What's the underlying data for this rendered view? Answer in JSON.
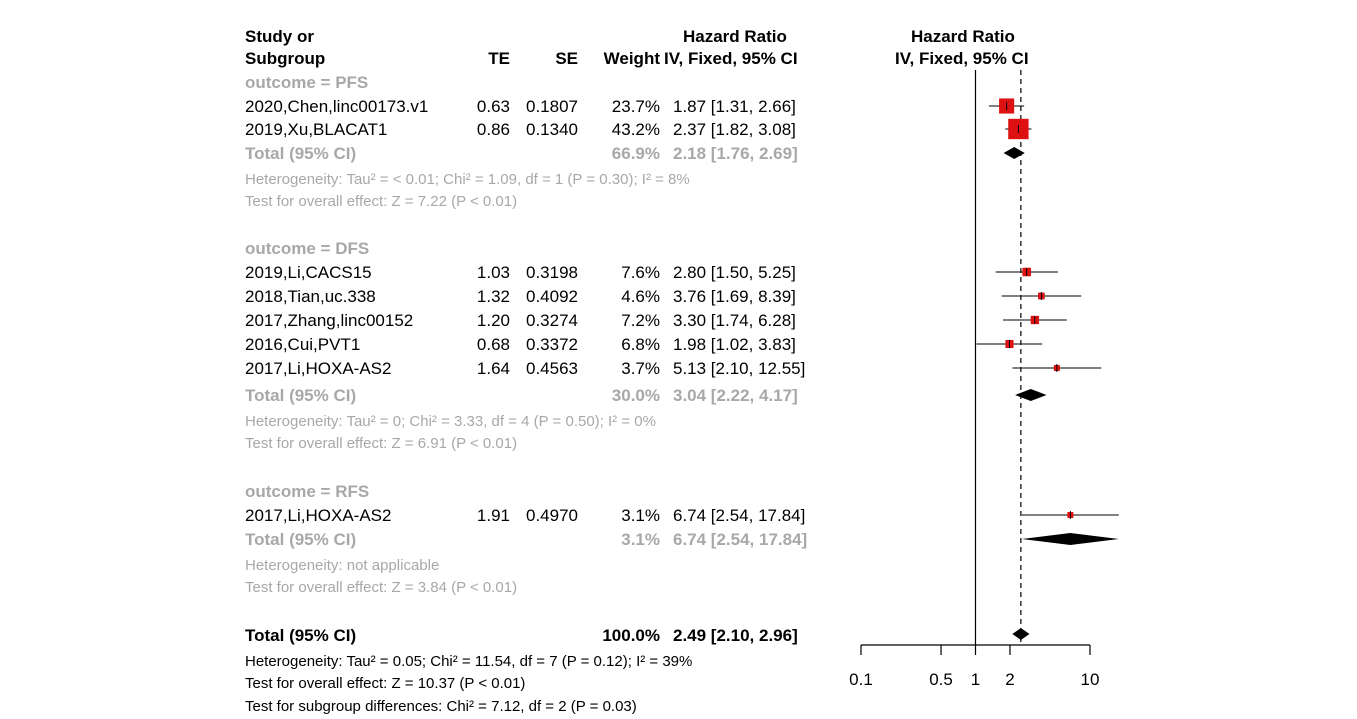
{
  "headers": {
    "study_line1": "Study or",
    "study_line2": "Subgroup",
    "te": "TE",
    "se": "SE",
    "weight": "Weight",
    "hr_line1": "Hazard Ratio",
    "hr_line2": "IV, Fixed, 95% CI",
    "plot_line1": "Hazard Ratio",
    "plot_line2": "IV, Fixed, 95% CI"
  },
  "subgroups": [
    {
      "label": "outcome = PFS",
      "studies": [
        {
          "name": "2020,Chen,linc00173.v1",
          "te": "0.63",
          "se": "0.1807",
          "weight": "23.7%",
          "ci": "1.87 [1.31,  2.66]"
        },
        {
          "name": "2019,Xu,BLACAT1",
          "te": "0.86",
          "se": "0.1340",
          "weight": "43.2%",
          "ci": "2.37 [1.82,  3.08]"
        }
      ],
      "total": {
        "label": "Total (95% CI)",
        "weight": "66.9%",
        "ci": "2.18 [1.76,  2.69]"
      },
      "heterogeneity": "Heterogeneity: Tau² = < 0.01; Chi² = 1.09, df = 1 (P = 0.30); I² = 8%",
      "overall": "Test for overall effect: Z = 7.22 (P < 0.01)"
    },
    {
      "label": "outcome = DFS",
      "studies": [
        {
          "name": "2019,Li,CACS15",
          "te": "1.03",
          "se": "0.3198",
          "weight": "7.6%",
          "ci": "2.80 [1.50,  5.25]"
        },
        {
          "name": "2018,Tian,uc.338",
          "te": "1.32",
          "se": "0.4092",
          "weight": "4.6%",
          "ci": "3.76 [1.69,  8.39]"
        },
        {
          "name": "2017,Zhang,linc00152",
          "te": "1.20",
          "se": "0.3274",
          "weight": "7.2%",
          "ci": "3.30 [1.74,  6.28]"
        },
        {
          "name": "2016,Cui,PVT1",
          "te": "0.68",
          "se": "0.3372",
          "weight": "6.8%",
          "ci": "1.98 [1.02,  3.83]"
        },
        {
          "name": "2017,Li,HOXA-AS2",
          "te": "1.64",
          "se": "0.4563",
          "weight": "3.7%",
          "ci": "5.13 [2.10, 12.55]"
        }
      ],
      "total": {
        "label": "Total (95% CI)",
        "weight": "30.0%",
        "ci": "3.04 [2.22,  4.17]"
      },
      "heterogeneity": "Heterogeneity: Tau² = 0; Chi² = 3.33, df = 4 (P = 0.50); I² = 0%",
      "overall": "Test for overall effect: Z = 6.91 (P < 0.01)"
    },
    {
      "label": "outcome = RFS",
      "studies": [
        {
          "name": "2017,Li,HOXA-AS2",
          "te": "1.91",
          "se": "0.4970",
          "weight": "3.1%",
          "ci": "6.74 [2.54, 17.84]"
        }
      ],
      "total": {
        "label": "Total (95% CI)",
        "weight": "3.1%",
        "ci": "6.74 [2.54, 17.84]"
      },
      "heterogeneity": "Heterogeneity: not applicable",
      "overall": "Test for overall effect: Z = 3.84 (P < 0.01)"
    }
  ],
  "overall_total": {
    "label": "Total (95% CI)",
    "weight": "100.0%",
    "ci": "2.49 [2.10,  2.96]"
  },
  "overall_heterogeneity": "Heterogeneity: Tau² = 0.05; Chi² = 11.54, df = 7 (P = 0.12); I² = 39%",
  "overall_effect": "Test for overall effect: Z = 10.37 (P < 0.01)",
  "subgroup_differences": "Test for subgroup differences: Chi² = 7.12, df = 2 (P = 0.03)",
  "colors": {
    "square": "#dd1111",
    "diamond": "#000000",
    "grey_text": "#a8a8a8"
  },
  "chart_data": {
    "type": "scatter",
    "x_scale": "log",
    "xlim": [
      0.1,
      10
    ],
    "xticks": [
      "0.1",
      "0.5",
      "1",
      "2",
      "10"
    ],
    "reference_line": 1,
    "pooled_line": 2.49,
    "studies": [
      {
        "hr": 1.87,
        "lo": 1.31,
        "hi": 2.66,
        "weight": 23.7
      },
      {
        "hr": 2.37,
        "lo": 1.82,
        "hi": 3.08,
        "weight": 43.2
      },
      {
        "hr": 2.8,
        "lo": 1.5,
        "hi": 5.25,
        "weight": 7.6
      },
      {
        "hr": 3.76,
        "lo": 1.69,
        "hi": 8.39,
        "weight": 4.6
      },
      {
        "hr": 3.3,
        "lo": 1.74,
        "hi": 6.28,
        "weight": 7.2
      },
      {
        "hr": 1.98,
        "lo": 1.02,
        "hi": 3.83,
        "weight": 6.8
      },
      {
        "hr": 5.13,
        "lo": 2.1,
        "hi": 12.55,
        "weight": 3.7
      },
      {
        "hr": 6.74,
        "lo": 2.54,
        "hi": 17.84,
        "weight": 3.1
      }
    ],
    "diamonds": [
      {
        "hr": 2.18,
        "lo": 1.76,
        "hi": 2.69
      },
      {
        "hr": 3.04,
        "lo": 2.22,
        "hi": 4.17
      },
      {
        "hr": 6.74,
        "lo": 2.54,
        "hi": 17.84
      },
      {
        "hr": 2.49,
        "lo": 2.1,
        "hi": 2.96
      }
    ]
  }
}
